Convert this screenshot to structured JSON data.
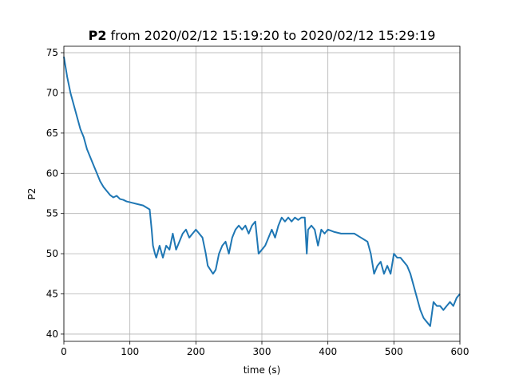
{
  "chart_data": {
    "type": "line",
    "title_name": "P2",
    "title_range": "from 2020/02/12 15:19:20 to 2020/02/12 15:29:19",
    "x_label": "time (s)",
    "y_label": "P2",
    "x": [
      0,
      5,
      10,
      15,
      20,
      25,
      30,
      35,
      40,
      45,
      50,
      55,
      60,
      65,
      70,
      75,
      80,
      85,
      90,
      95,
      100,
      110,
      120,
      130,
      133,
      135,
      138,
      140,
      145,
      150,
      155,
      160,
      165,
      170,
      175,
      180,
      185,
      190,
      195,
      200,
      205,
      210,
      215,
      218,
      222,
      226,
      230,
      235,
      240,
      245,
      250,
      255,
      260,
      265,
      270,
      275,
      280,
      285,
      290,
      295,
      300,
      305,
      310,
      315,
      320,
      325,
      330,
      335,
      340,
      345,
      350,
      355,
      360,
      365,
      368,
      370,
      375,
      380,
      385,
      390,
      395,
      400,
      410,
      420,
      430,
      440,
      450,
      460,
      465,
      470,
      475,
      480,
      485,
      490,
      495,
      500,
      505,
      510,
      515,
      520,
      525,
      530,
      535,
      540,
      545,
      550,
      555,
      560,
      565,
      570,
      575,
      580,
      585,
      590,
      595,
      600
    ],
    "values": [
      74.5,
      72,
      70,
      68.5,
      67,
      65.5,
      64.5,
      63,
      62,
      61,
      60,
      59,
      58.3,
      57.8,
      57.3,
      57,
      57.2,
      56.8,
      56.7,
      56.5,
      56.4,
      56.2,
      56,
      55.5,
      53,
      51,
      50,
      49.5,
      51,
      49.5,
      51,
      50.5,
      52.5,
      50.5,
      51.5,
      52.5,
      53,
      52,
      52.5,
      53,
      52.5,
      52,
      50,
      48.5,
      48,
      47.5,
      48,
      50,
      51,
      51.5,
      50,
      52,
      53,
      53.5,
      53,
      53.5,
      52.5,
      53.5,
      54,
      50,
      50.5,
      51,
      52,
      53,
      52,
      53.5,
      54.5,
      54,
      54.5,
      54,
      54.5,
      54.2,
      54.5,
      54.5,
      50,
      53,
      53.5,
      53,
      51,
      53,
      52.5,
      53,
      52.7,
      52.5,
      52.5,
      52.5,
      52,
      51.5,
      50,
      47.5,
      48.5,
      49,
      47.5,
      48.5,
      47.5,
      50,
      49.5,
      49.5,
      49,
      48.5,
      47.5,
      46,
      44.5,
      43,
      42,
      41.5,
      41,
      44,
      43.5,
      43.5,
      43,
      43.5,
      44,
      43.5,
      44.5,
      45
    ],
    "color": "#1f77b4",
    "xlim": [
      0,
      600
    ],
    "ylim": [
      39.1,
      75.8
    ],
    "xticks": [
      0,
      100,
      200,
      300,
      400,
      500,
      600
    ],
    "yticks": [
      40,
      45,
      50,
      55,
      60,
      65,
      70,
      75
    ],
    "grid": true
  }
}
